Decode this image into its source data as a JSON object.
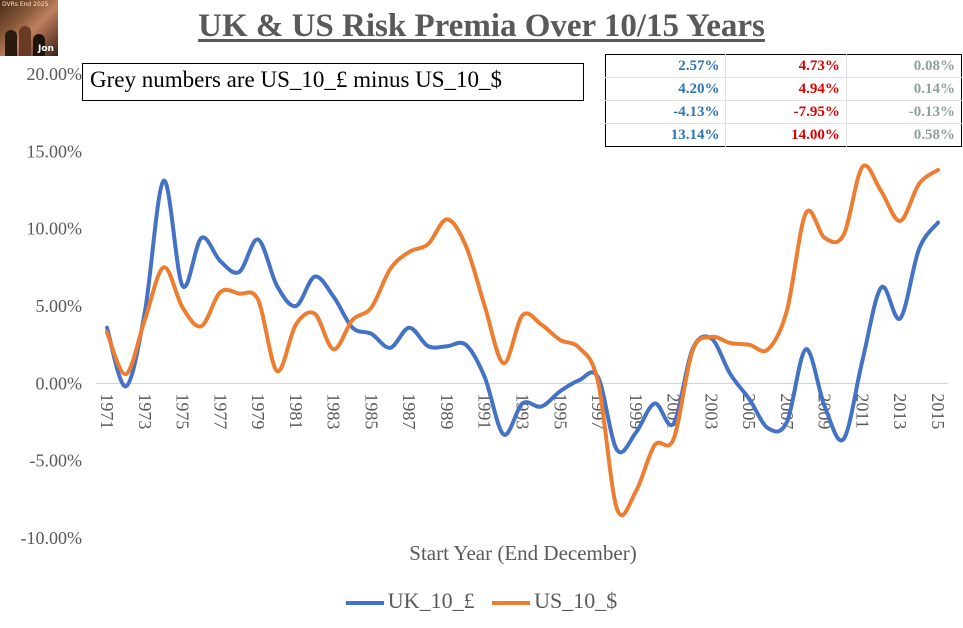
{
  "thumbnail": {
    "caption_top": "DVRs End 2025",
    "caption_bottom": "Jon"
  },
  "title": "UK & US Risk Premia  Over 10/15 Years",
  "note": "Grey numbers are US_10_£ minus US_10_$",
  "stats_table": {
    "rows": [
      [
        "2.57%",
        "4.73%",
        "0.08%"
      ],
      [
        "4.20%",
        "4.94%",
        "0.14%"
      ],
      [
        "-4.13%",
        "-7.95%",
        "-0.13%"
      ],
      [
        "13.14%",
        "14.00%",
        "0.58%"
      ]
    ],
    "column_colors": [
      "#2e75b6",
      "#e00000",
      "#8da397"
    ]
  },
  "chart_data": {
    "type": "line",
    "title": "UK & US Risk Premia  Over 10/15 Years",
    "xlabel": "Start Year (End December)",
    "ylabel": "",
    "ylim": [
      -10,
      20
    ],
    "y_ticks": [
      20,
      15,
      10,
      5,
      0,
      -5,
      -10
    ],
    "y_tick_labels": [
      "20.00%",
      "15.00%",
      "10.00%",
      "5.00%",
      "0.00%",
      "-5.00%",
      "-10.00%"
    ],
    "x_tick_labels": [
      "1971",
      "1973",
      "1975",
      "1977",
      "1979",
      "1981",
      "1983",
      "1985",
      "1987",
      "1989",
      "1991",
      "1993",
      "1995",
      "1997",
      "1999",
      "2001",
      "2003",
      "2005",
      "2007",
      "2009",
      "2011",
      "2013",
      "2015"
    ],
    "grid": "horizontal",
    "legend_position": "bottom",
    "x": [
      1971,
      1972,
      1973,
      1974,
      1975,
      1976,
      1977,
      1978,
      1979,
      1980,
      1981,
      1982,
      1983,
      1984,
      1985,
      1986,
      1987,
      1988,
      1989,
      1990,
      1991,
      1992,
      1993,
      1994,
      1995,
      1996,
      1997,
      1998,
      1999,
      2000,
      2001,
      2002,
      2003,
      2004,
      2005,
      2006,
      2007,
      2008,
      2009,
      2010,
      2011,
      2012,
      2013,
      2014,
      2015
    ],
    "series": [
      {
        "name": "UK_10_£",
        "color": "#4472c4",
        "values": [
          3.6,
          -0.2,
          4.6,
          13.1,
          6.3,
          9.4,
          7.9,
          7.2,
          9.3,
          6.3,
          5.0,
          6.9,
          5.6,
          3.6,
          3.2,
          2.3,
          3.6,
          2.4,
          2.4,
          2.5,
          0.4,
          -3.3,
          -1.3,
          -1.5,
          -0.5,
          0.2,
          0.4,
          -4.3,
          -3.2,
          -1.3,
          -2.6,
          2.2,
          2.9,
          0.6,
          -1.0,
          -2.9,
          -2.5,
          2.2,
          -1.5,
          -3.6,
          1.5,
          6.2,
          4.2,
          8.7,
          10.4
        ]
      },
      {
        "name": "US_10_$",
        "color": "#ed7d31",
        "values": [
          3.3,
          0.6,
          4.1,
          7.5,
          4.9,
          3.7,
          5.9,
          5.8,
          5.4,
          0.8,
          3.8,
          4.5,
          2.2,
          4.1,
          4.9,
          7.4,
          8.5,
          9.0,
          10.6,
          8.9,
          5.0,
          1.3,
          4.4,
          3.8,
          2.8,
          2.3,
          0.1,
          -8.1,
          -7.0,
          -4.0,
          -3.6,
          2.1,
          3.0,
          2.6,
          2.5,
          2.2,
          4.7,
          11.0,
          9.4,
          9.6,
          14.0,
          12.4,
          10.5,
          12.9,
          13.8
        ]
      }
    ]
  },
  "legend": {
    "items": [
      "UK_10_£",
      "US_10_$"
    ]
  }
}
